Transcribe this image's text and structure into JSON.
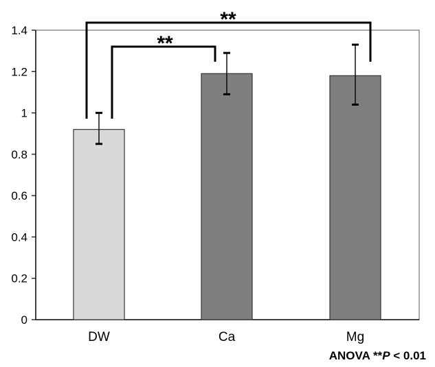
{
  "chart_data": {
    "type": "bar",
    "categories": [
      "DW",
      "Ca",
      "Mg"
    ],
    "values": [
      0.92,
      1.19,
      1.18
    ],
    "error_bars": [
      {
        "lower": 0.85,
        "upper": 1.0
      },
      {
        "lower": 1.09,
        "upper": 1.29
      },
      {
        "lower": 1.04,
        "upper": 1.33
      }
    ],
    "bar_colors": [
      "#d9d9d9",
      "#7f7f7f",
      "#7f7f7f"
    ],
    "ylim": [
      0,
      1.4
    ],
    "y_ticks": [
      0,
      0.2,
      0.4,
      0.6,
      0.8,
      1,
      1.2,
      1.4
    ],
    "y_tick_labels": [
      "0",
      "0.2",
      "0.4",
      "0.6",
      "0.8",
      "1",
      "1.2",
      "1.4"
    ],
    "grid": false,
    "significance": [
      {
        "from": "DW",
        "to": "Ca",
        "label": "**"
      },
      {
        "from": "DW",
        "to": "Mg",
        "label": "**"
      }
    ]
  },
  "note": {
    "prefix": "ANOVA **",
    "p": "P",
    "suffix": " < 0.01"
  }
}
